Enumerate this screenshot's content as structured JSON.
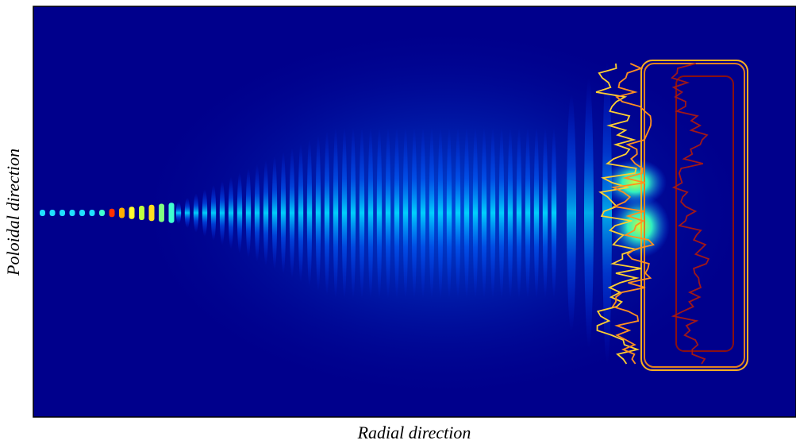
{
  "x_label": "Radial direction",
  "y_label": "Poloidal direction"
}
